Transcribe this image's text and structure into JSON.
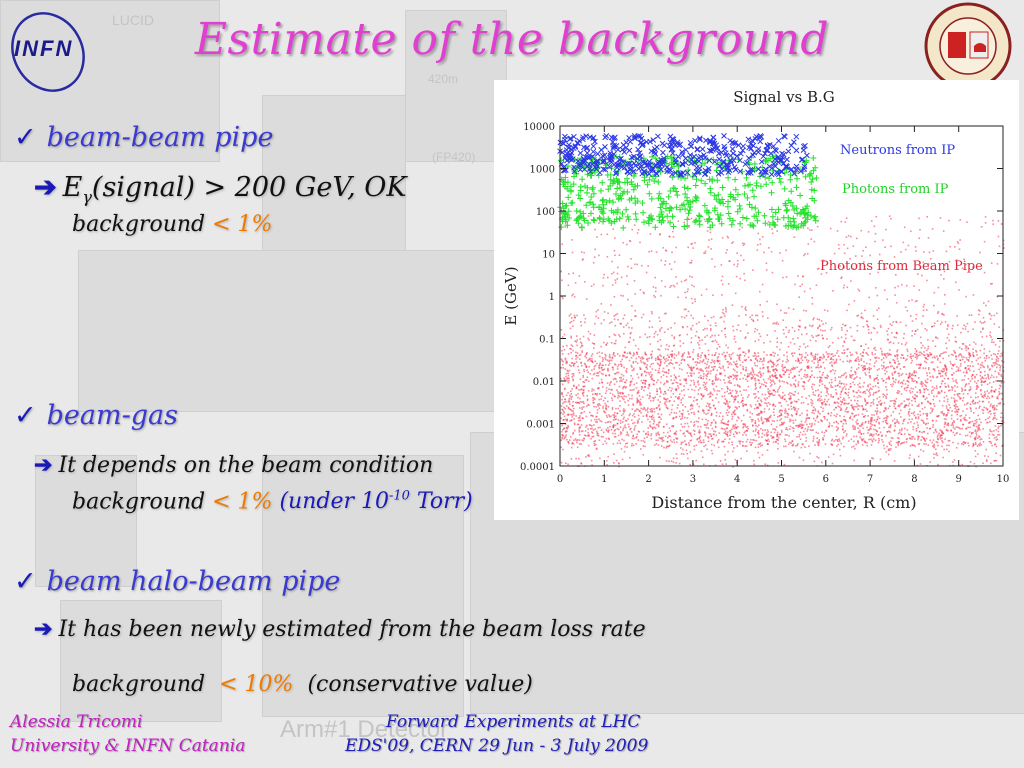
{
  "slide": {
    "title": "Estimate of the background",
    "logo_left": "INFN",
    "background_labels": {
      "lucid": "LUCID",
      "fp420": "(FP420)",
      "m420": "420m",
      "arm": "Arm#1 Detector"
    }
  },
  "sections": [
    {
      "heading": "beam-beam pipe",
      "line1_a": "E",
      "line1_b": "γ",
      "line1_c": "(signal) > 200 GeV, OK",
      "line2_label": "background",
      "line2_value": "< 1%"
    },
    {
      "heading": "beam-gas",
      "line1": "It depends on the beam condition",
      "line2_label": "background",
      "line2_value": "< 1%",
      "line2_extra_a": "(under 10",
      "line2_extra_sup": "-10",
      "line2_extra_b": " Torr)"
    },
    {
      "heading": "beam halo-beam pipe",
      "line1": "It has been newly estimated from the beam loss rate",
      "line2_label": "background",
      "line2_value": "< 10%",
      "line2_extra": "(conservative value)"
    }
  ],
  "footer": {
    "author": "Alessia Tricomi",
    "affiliation": "University & INFN Catania",
    "event_line1": "Forward Experiments at LHC",
    "event_line2": "EDS'09, CERN 29 Jun - 3 July 2009"
  },
  "colors": {
    "title": "#e040d0",
    "bullet": "#3a3ad0",
    "highlight": "#ee7a00",
    "neutrons": "#2a36e6",
    "photons_ip": "#22e22a",
    "photons_pipe": "#f0304a"
  },
  "chart_data": {
    "type": "scatter",
    "title": "Signal vs B.G",
    "xlabel": "Distance from the center, R (cm)",
    "ylabel": "E (GeV)",
    "xlim": [
      0,
      10
    ],
    "ylim": [
      0.0001,
      10000
    ],
    "yscale": "log",
    "x_ticks": [
      "0",
      "1",
      "2",
      "3",
      "4",
      "5",
      "6",
      "7",
      "8",
      "9",
      "10"
    ],
    "y_ticks": [
      "0.0001",
      "0.001",
      "0.01",
      "0.1",
      "1",
      "10",
      "100",
      "1000",
      "10000"
    ],
    "grid": false,
    "legend_position": "inside-right",
    "series": [
      {
        "name": "Neutrons from IP",
        "marker": "x",
        "color": "#2a36e6",
        "x_range": [
          0,
          5.6
        ],
        "e_range": [
          700,
          6000
        ]
      },
      {
        "name": "Photons from IP",
        "marker": "+",
        "color": "#22e22a",
        "x_range": [
          0,
          5.8
        ],
        "e_range": [
          40,
          2000
        ]
      },
      {
        "name": "Photons from Beam Pipe",
        "marker": "dot",
        "color": "#f0304a",
        "x_range": [
          0,
          10
        ],
        "e_range": [
          0.0001,
          10
        ],
        "density_peak_e": [
          0.0003,
          0.05
        ]
      }
    ]
  }
}
